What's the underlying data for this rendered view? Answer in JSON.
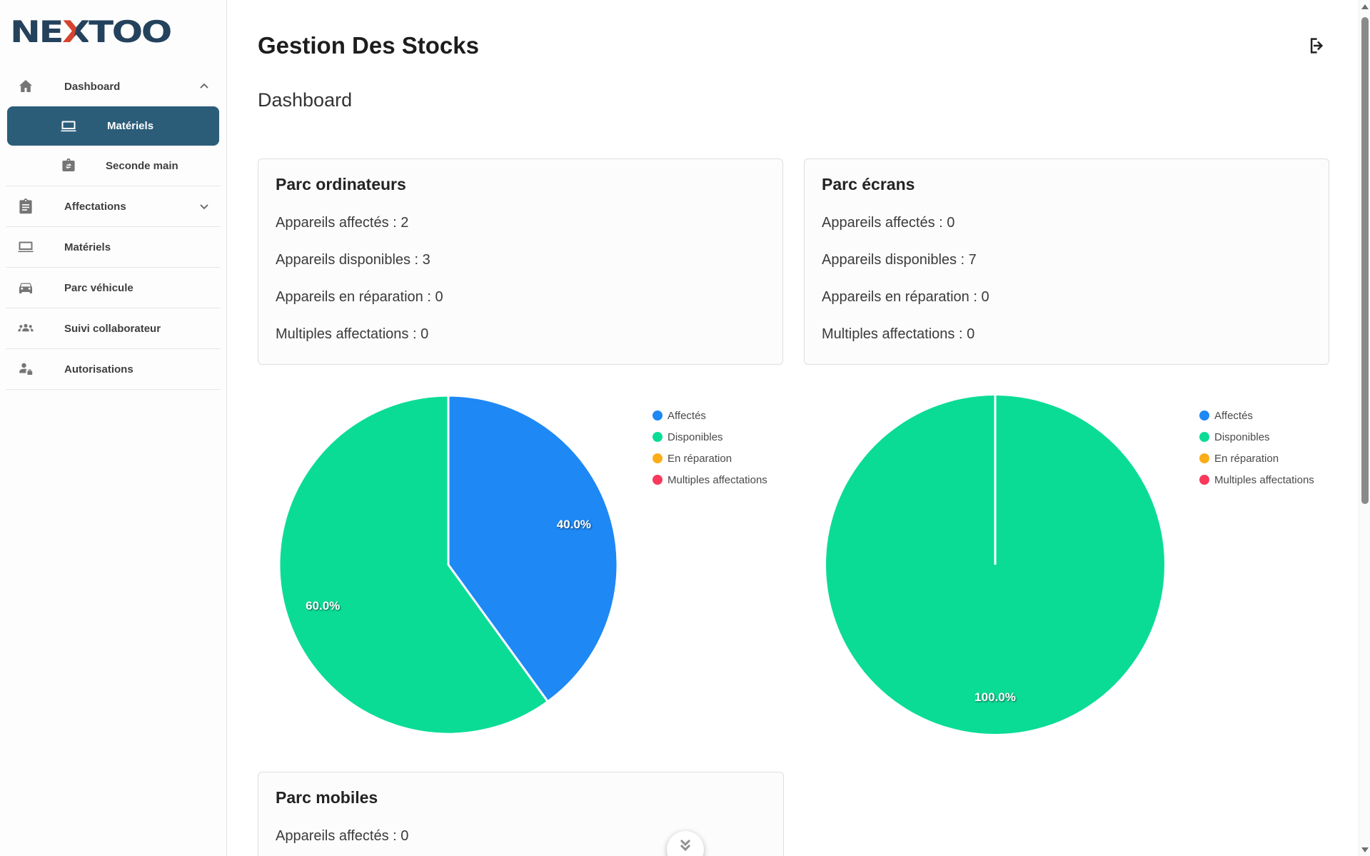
{
  "app": {
    "title": "Gestion Des Stocks",
    "subtitle": "Dashboard",
    "logo": {
      "left": "NE",
      "x": "X",
      "right": "TOO"
    }
  },
  "colors": {
    "sidebar_selected": "#2B5D79",
    "logo_navy": "#24425C",
    "logo_red": "#D6432F",
    "affected_blue": "#1E88F5",
    "available_green": "#0BDC95",
    "repair_orange": "#FBAD18",
    "multiple_red": "#F9395C"
  },
  "sidebar": {
    "dashboard": {
      "label": "Dashboard"
    },
    "sub_materiels": {
      "label": "Matériels"
    },
    "sub_seconde_main": {
      "label": "Seconde main"
    },
    "affectations": {
      "label": "Affectations"
    },
    "materiels": {
      "label": "Matériels"
    },
    "parc_vehicule": {
      "label": "Parc véhicule"
    },
    "suivi_collaborateur": {
      "label": "Suivi collaborateur"
    },
    "autorisations": {
      "label": "Autorisations"
    }
  },
  "cards": {
    "ordinateurs": {
      "title": "Parc ordinateurs",
      "stats": [
        "Appareils affectés : 2",
        "Appareils disponibles : 3",
        "Appareils en réparation : 0",
        "Multiples affectations : 0"
      ]
    },
    "ecrans": {
      "title": "Parc écrans",
      "stats": [
        "Appareils affectés : 0",
        "Appareils disponibles : 7",
        "Appareils en réparation : 0",
        "Multiples affectations : 0"
      ]
    },
    "mobiles": {
      "title": "Parc mobiles",
      "stats": [
        "Appareils affectés : 0"
      ]
    }
  },
  "chart_data": [
    {
      "type": "pie",
      "title": "Parc ordinateurs",
      "labels": [
        "Affectés",
        "Disponibles",
        "En réparation",
        "Multiples affectations"
      ],
      "values": [
        40.0,
        60.0,
        0.0,
        0.0
      ],
      "slice_labels": [
        "40.0%",
        "60.0%",
        "",
        ""
      ],
      "colors": [
        "#1E88F5",
        "#0BDC95",
        "#FBAD18",
        "#F9395C"
      ],
      "legend_position": "right",
      "start_angle_deg": 0,
      "direction": "clockwise"
    },
    {
      "type": "pie",
      "title": "Parc écrans",
      "labels": [
        "Affectés",
        "Disponibles",
        "En réparation",
        "Multiples affectations"
      ],
      "values": [
        0.0,
        100.0,
        0.0,
        0.0
      ],
      "slice_labels": [
        "",
        "100.0%",
        "",
        ""
      ],
      "colors": [
        "#1E88F5",
        "#0BDC95",
        "#FBAD18",
        "#F9395C"
      ],
      "legend_position": "right",
      "start_angle_deg": 0,
      "direction": "clockwise"
    }
  ]
}
